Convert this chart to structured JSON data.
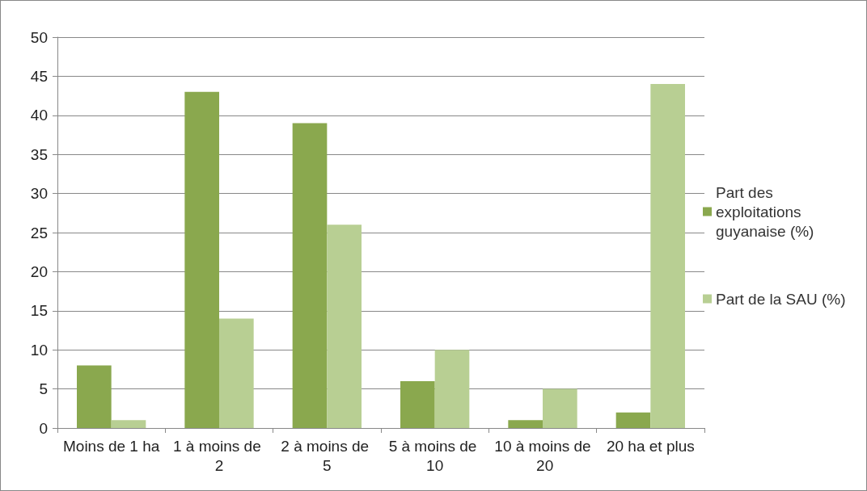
{
  "chart_data": {
    "type": "bar",
    "categories": [
      "Moins de 1 ha",
      "1 à moins de 2",
      "2 à moins de 5",
      "5 à moins de 10",
      "10 à moins de 20",
      "20 ha et plus"
    ],
    "series": [
      {
        "name": "Part des exploitations guyanaise (%)",
        "color": "#8aa84e",
        "values": [
          8,
          43,
          39,
          6,
          1,
          2
        ]
      },
      {
        "name": "Part de la SAU (%)",
        "color": "#b8cf93",
        "values": [
          1,
          14,
          26,
          10,
          5,
          44
        ]
      }
    ],
    "ylim": [
      0,
      50
    ],
    "yticks": [
      0,
      5,
      10,
      15,
      20,
      25,
      30,
      35,
      40,
      45,
      50
    ],
    "grid": "y",
    "legend": "right"
  }
}
